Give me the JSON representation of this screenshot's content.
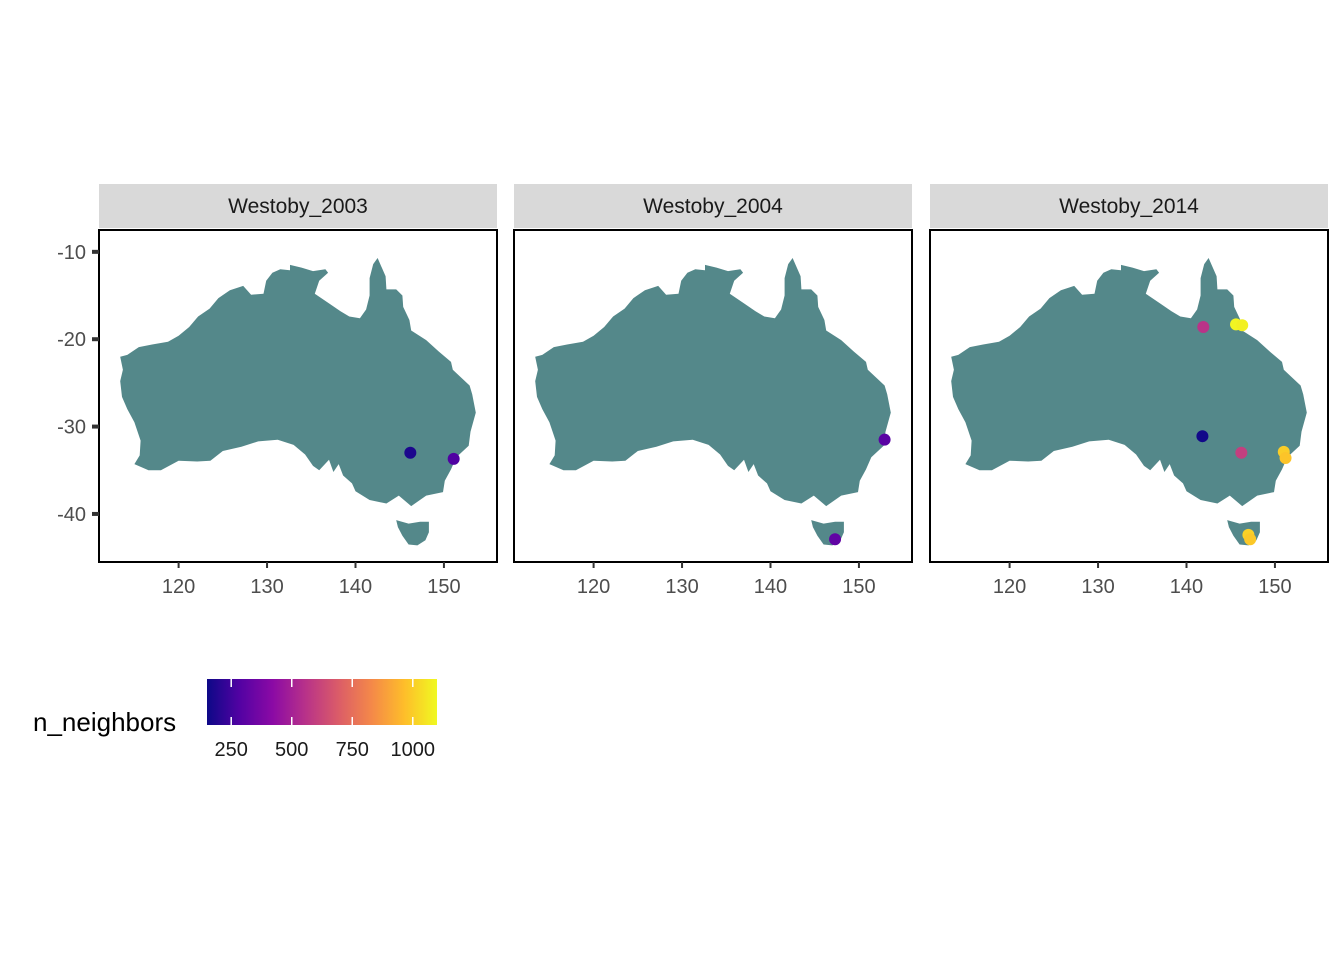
{
  "chart_data": {
    "type": "scatter",
    "subtype": "faceted map of point locations",
    "xlim": [
      111,
      156
    ],
    "ylim": [
      -45.5,
      -7.5
    ],
    "x_ticks": [
      120,
      130,
      140,
      150
    ],
    "x_tick_labels": [
      "120",
      "130",
      "140",
      "150"
    ],
    "y_ticks": [
      -10,
      -20,
      -30,
      -40
    ],
    "y_tick_labels": [
      "-10",
      "-20",
      "-30",
      "-40"
    ],
    "grid": false,
    "land_color": "#54888a",
    "panel_border_color": "#000000",
    "strip_fill": "#d9d9d9",
    "color_scale": {
      "title": "n_neighbors",
      "palette": "plasma",
      "min": 150,
      "max": 1100,
      "ticks": [
        250,
        500,
        750,
        1000
      ],
      "tick_labels": [
        "250",
        "500",
        "750",
        "1000"
      ],
      "stops": [
        "#0d0887",
        "#5302a3",
        "#8b0aa5",
        "#b83289",
        "#db5c68",
        "#f48849",
        "#febd2a",
        "#f0f921"
      ],
      "position": "bottom-left"
    },
    "facets": [
      {
        "label": "Westoby_2003",
        "points": [
          {
            "lon": 146.2,
            "lat": -33.0,
            "n_neighbors": 180
          },
          {
            "lon": 151.1,
            "lat": -33.7,
            "n_neighbors": 280
          }
        ]
      },
      {
        "label": "Westoby_2004",
        "points": [
          {
            "lon": 152.9,
            "lat": -31.5,
            "n_neighbors": 300
          },
          {
            "lon": 147.3,
            "lat": -42.9,
            "n_neighbors": 320
          }
        ]
      },
      {
        "label": "Westoby_2014",
        "points": [
          {
            "lon": 141.8,
            "lat": -31.1,
            "n_neighbors": 160
          },
          {
            "lon": 141.9,
            "lat": -18.6,
            "n_neighbors": 560
          },
          {
            "lon": 146.2,
            "lat": -33.0,
            "n_neighbors": 600
          },
          {
            "lon": 145.6,
            "lat": -18.3,
            "n_neighbors": 1090
          },
          {
            "lon": 146.3,
            "lat": -18.4,
            "n_neighbors": 1080
          },
          {
            "lon": 151.0,
            "lat": -32.9,
            "n_neighbors": 1000
          },
          {
            "lon": 151.2,
            "lat": -33.6,
            "n_neighbors": 980
          },
          {
            "lon": 147.0,
            "lat": -42.4,
            "n_neighbors": 1010
          },
          {
            "lon": 147.2,
            "lat": -42.9,
            "n_neighbors": 990
          }
        ]
      }
    ],
    "coastline": {
      "mainland": [
        [
          113.4,
          -22.0
        ],
        [
          114.2,
          -21.8
        ],
        [
          115.5,
          -20.9
        ],
        [
          117.0,
          -20.6
        ],
        [
          118.8,
          -20.3
        ],
        [
          120.0,
          -19.6
        ],
        [
          121.2,
          -18.6
        ],
        [
          122.2,
          -17.4
        ],
        [
          123.5,
          -16.5
        ],
        [
          124.5,
          -15.3
        ],
        [
          125.8,
          -14.4
        ],
        [
          127.3,
          -13.9
        ],
        [
          128.2,
          -14.9
        ],
        [
          129.6,
          -14.8
        ],
        [
          129.9,
          -13.3
        ],
        [
          130.6,
          -12.4
        ],
        [
          131.5,
          -12.0
        ],
        [
          132.6,
          -12.1
        ],
        [
          132.6,
          -11.5
        ],
        [
          133.9,
          -11.8
        ],
        [
          135.2,
          -12.2
        ],
        [
          136.6,
          -12.0
        ],
        [
          136.9,
          -12.4
        ],
        [
          135.9,
          -13.3
        ],
        [
          135.4,
          -14.8
        ],
        [
          137.0,
          -15.9
        ],
        [
          138.3,
          -16.8
        ],
        [
          139.3,
          -17.4
        ],
        [
          140.5,
          -17.6
        ],
        [
          141.2,
          -16.6
        ],
        [
          141.6,
          -15.0
        ],
        [
          141.6,
          -13.0
        ],
        [
          142.0,
          -11.4
        ],
        [
          142.5,
          -10.7
        ],
        [
          143.4,
          -12.8
        ],
        [
          143.5,
          -14.3
        ],
        [
          144.6,
          -14.3
        ],
        [
          145.3,
          -15.0
        ],
        [
          145.4,
          -16.3
        ],
        [
          146.1,
          -17.8
        ],
        [
          146.3,
          -19.0
        ],
        [
          148.0,
          -20.1
        ],
        [
          149.4,
          -21.4
        ],
        [
          150.8,
          -22.6
        ],
        [
          151.0,
          -23.5
        ],
        [
          152.9,
          -25.3
        ],
        [
          153.2,
          -26.3
        ],
        [
          153.6,
          -28.4
        ],
        [
          153.0,
          -30.6
        ],
        [
          152.8,
          -32.2
        ],
        [
          151.4,
          -33.5
        ],
        [
          150.8,
          -34.9
        ],
        [
          150.1,
          -36.2
        ],
        [
          149.9,
          -37.5
        ],
        [
          148.0,
          -37.9
        ],
        [
          146.3,
          -39.1
        ],
        [
          144.9,
          -37.9
        ],
        [
          143.5,
          -38.8
        ],
        [
          141.6,
          -38.4
        ],
        [
          140.0,
          -37.4
        ],
        [
          139.6,
          -36.5
        ],
        [
          138.6,
          -35.6
        ],
        [
          138.1,
          -34.3
        ],
        [
          137.5,
          -35.2
        ],
        [
          137.0,
          -33.8
        ],
        [
          135.9,
          -35.0
        ],
        [
          135.2,
          -34.5
        ],
        [
          134.3,
          -33.2
        ],
        [
          133.0,
          -32.1
        ],
        [
          131.2,
          -31.5
        ],
        [
          129.0,
          -31.7
        ],
        [
          127.1,
          -32.3
        ],
        [
          125.0,
          -32.8
        ],
        [
          123.6,
          -33.9
        ],
        [
          122.1,
          -34.0
        ],
        [
          120.0,
          -33.9
        ],
        [
          118.0,
          -35.0
        ],
        [
          116.6,
          -35.0
        ],
        [
          115.0,
          -34.3
        ],
        [
          115.6,
          -33.3
        ],
        [
          115.7,
          -31.6
        ],
        [
          115.0,
          -29.5
        ],
        [
          114.2,
          -28.0
        ],
        [
          113.6,
          -26.6
        ],
        [
          113.4,
          -24.8
        ],
        [
          113.7,
          -23.5
        ],
        [
          113.4,
          -22.0
        ]
      ],
      "tasmania": [
        [
          144.6,
          -40.7
        ],
        [
          146.0,
          -41.1
        ],
        [
          147.3,
          -40.9
        ],
        [
          148.3,
          -40.9
        ],
        [
          148.3,
          -42.1
        ],
        [
          147.9,
          -43.0
        ],
        [
          147.0,
          -43.6
        ],
        [
          146.0,
          -43.5
        ],
        [
          145.3,
          -42.5
        ],
        [
          144.8,
          -41.5
        ],
        [
          144.6,
          -40.7
        ]
      ]
    }
  }
}
